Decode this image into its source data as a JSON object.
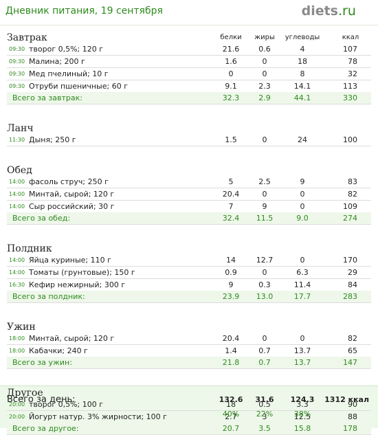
{
  "header": {
    "title": "Дневник питания, 19 сентября",
    "logo": {
      "main": "diets",
      "suffix": ".ru"
    }
  },
  "columns": [
    "белки",
    "жиры",
    "углеводы",
    "ккал"
  ],
  "sections": [
    {
      "name": "Завтрак",
      "items": [
        {
          "time": "09:30",
          "name": "творог 0,5%; 120 г",
          "values": [
            "21.6",
            "0.6",
            "4",
            "107"
          ]
        },
        {
          "time": "09:30",
          "name": "Малина; 200 г",
          "values": [
            "1.6",
            "0",
            "18",
            "78"
          ]
        },
        {
          "time": "09:30",
          "name": "Мед пчелиный; 10 г",
          "values": [
            "0",
            "0",
            "8",
            "32"
          ]
        },
        {
          "time": "09:30",
          "name": "Отруби пшеничные; 60 г",
          "values": [
            "9.1",
            "2.3",
            "14.1",
            "113"
          ]
        }
      ],
      "total": {
        "label": "Всего за завтрак:",
        "values": [
          "32.3",
          "2.9",
          "44.1",
          "330"
        ]
      }
    },
    {
      "name": "Ланч",
      "items": [
        {
          "time": "11:30",
          "name": "Дыня; 250 г",
          "values": [
            "1.5",
            "0",
            "24",
            "100"
          ]
        }
      ]
    },
    {
      "name": "Обед",
      "items": [
        {
          "time": "14:00",
          "name": "фасоль струч; 250 г",
          "values": [
            "5",
            "2.5",
            "9",
            "83"
          ]
        },
        {
          "time": "14:00",
          "name": "Минтай, сырой; 120 г",
          "values": [
            "20.4",
            "0",
            "0",
            "82"
          ]
        },
        {
          "time": "14:00",
          "name": "Сыр российский; 30 г",
          "values": [
            "7",
            "9",
            "0",
            "109"
          ]
        }
      ],
      "total": {
        "label": "Всего за обед:",
        "values": [
          "32.4",
          "11.5",
          "9.0",
          "274"
        ]
      }
    },
    {
      "name": "Полдник",
      "items": [
        {
          "time": "14:00",
          "name": "Яйца куриные; 110 г",
          "values": [
            "14",
            "12.7",
            "0",
            "170"
          ]
        },
        {
          "time": "14:00",
          "name": "Томаты (грунтовые); 150 г",
          "values": [
            "0.9",
            "0",
            "6.3",
            "29"
          ]
        },
        {
          "time": "16:30",
          "name": "Кефир нежирный; 300 г",
          "values": [
            "9",
            "0.3",
            "11.4",
            "84"
          ]
        }
      ],
      "total": {
        "label": "Всего за полдник:",
        "values": [
          "23.9",
          "13.0",
          "17.7",
          "283"
        ]
      }
    },
    {
      "name": "Ужин",
      "items": [
        {
          "time": "18:00",
          "name": "Минтай, сырой; 120 г",
          "values": [
            "20.4",
            "0",
            "0",
            "82"
          ]
        },
        {
          "time": "18:00",
          "name": "Кабачки; 240 г",
          "values": [
            "1.4",
            "0.7",
            "13.7",
            "65"
          ]
        }
      ],
      "total": {
        "label": "Всего за ужин:",
        "values": [
          "21.8",
          "0.7",
          "13.7",
          "147"
        ]
      }
    },
    {
      "name": "Другое",
      "items": [
        {
          "time": "20:00",
          "name": "творог 0,5%; 100 г",
          "values": [
            "18",
            "0.5",
            "3.3",
            "90"
          ]
        },
        {
          "time": "20:00",
          "name": "Йогурт натур. 3% жирности; 100 г",
          "values": [
            "2.7",
            "3",
            "12.5",
            "88"
          ]
        }
      ],
      "total": {
        "label": "Всего за другое:",
        "values": [
          "20.7",
          "3.5",
          "15.8",
          "178"
        ]
      }
    }
  ],
  "day_total": {
    "label": "Всего за день:",
    "values": [
      "132.6",
      "31.6",
      "124.3",
      "1312 ккал"
    ],
    "percents": [
      "40%",
      "22%",
      "38%"
    ]
  }
}
